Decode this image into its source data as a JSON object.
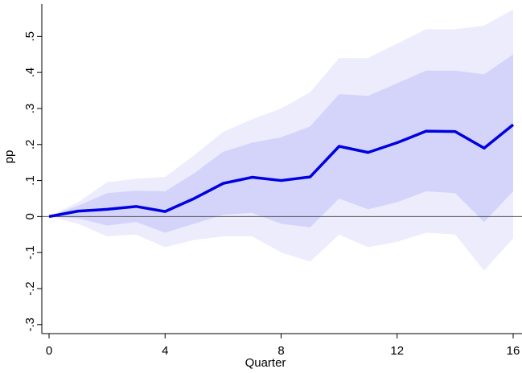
{
  "chart_data": {
    "type": "line",
    "x_label": "Quarter",
    "y_label": "pp",
    "x": [
      0,
      1,
      2,
      3,
      4,
      5,
      6,
      7,
      8,
      9,
      10,
      11,
      12,
      13,
      14,
      15,
      16
    ],
    "series": [
      {
        "color": "#0000e0",
        "values": [
          0,
          0.015,
          0.02,
          0.028,
          0.014,
          0.05,
          0.092,
          0.109,
          0.1,
          0.11,
          0.195,
          0.178,
          0.205,
          0.237,
          0.236,
          0.19,
          0.255
        ]
      }
    ],
    "bands": [
      {
        "color": "#ececfd",
        "upper": [
          0,
          0.04,
          0.095,
          0.105,
          0.11,
          0.17,
          0.235,
          0.27,
          0.3,
          0.345,
          0.44,
          0.44,
          0.48,
          0.52,
          0.52,
          0.53,
          0.575
        ],
        "lower": [
          0,
          -0.02,
          -0.055,
          -0.05,
          -0.085,
          -0.065,
          -0.055,
          -0.055,
          -0.1,
          -0.125,
          -0.05,
          -0.085,
          -0.07,
          -0.045,
          -0.05,
          -0.15,
          -0.06
        ]
      },
      {
        "color": "#d4d4fb",
        "upper": [
          0,
          0.03,
          0.065,
          0.072,
          0.07,
          0.12,
          0.18,
          0.205,
          0.22,
          0.25,
          0.34,
          0.335,
          0.37,
          0.405,
          0.405,
          0.395,
          0.45
        ],
        "lower": [
          0,
          -0.005,
          -0.025,
          -0.015,
          -0.045,
          -0.02,
          0.005,
          0.01,
          -0.02,
          -0.03,
          0.05,
          0.02,
          0.04,
          0.07,
          0.065,
          -0.015,
          0.07
        ]
      }
    ],
    "reference_line": 0,
    "xlim": [
      0,
      16
    ],
    "xticks": [
      0,
      4,
      8,
      12,
      16
    ],
    "ylim": [
      -0.325,
      0.59
    ],
    "yticks": [
      {
        "value": -0.3,
        "label": "-.3"
      },
      {
        "value": -0.2,
        "label": "-.2"
      },
      {
        "value": -0.1,
        "label": "-.1"
      },
      0,
      {
        "value": 0.1,
        "label": ".1"
      },
      {
        "value": 0.2,
        "label": ".2"
      },
      {
        "value": 0.3,
        "label": ".3"
      },
      {
        "value": 0.4,
        "label": ".4"
      },
      {
        "value": 0.5,
        "label": ".5"
      }
    ]
  }
}
